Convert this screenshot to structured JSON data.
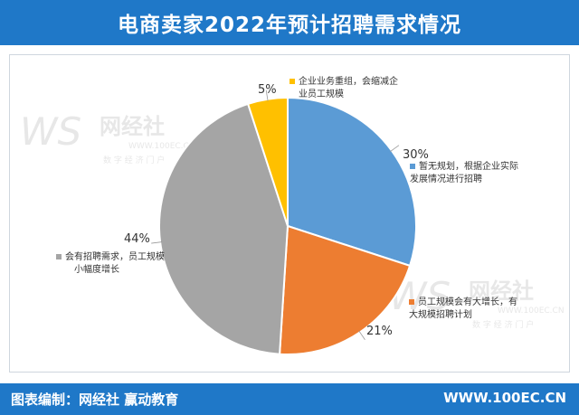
{
  "title": "电商卖家2022年预计招聘需求情况",
  "footer": {
    "left": "图表编制：网经社  赢动教育",
    "right": "WWW.100EC.CN"
  },
  "watermark": {
    "logo": "WS",
    "brand": "网经社",
    "url": "WWW.100EC.CN",
    "tagline": "数 字 经 济 门 户"
  },
  "colors": {
    "header": "#1f78c8",
    "slices": [
      "#5b9bd5",
      "#ed7d31",
      "#a5a5a5",
      "#ffc000"
    ]
  },
  "chart_data": {
    "type": "pie",
    "title": "电商卖家2022年预计招聘需求情况",
    "slices": [
      {
        "pct_label": "30%",
        "value": 30,
        "label_lines": [
          "暂无规划，根据企业实际",
          "发展情况进行招聘"
        ]
      },
      {
        "pct_label": "21%",
        "value": 21,
        "label_lines": [
          "员工规模会有大增长，有",
          "大规模招聘计划"
        ]
      },
      {
        "pct_label": "44%",
        "value": 44,
        "label_lines": [
          "会有招聘需求，员工规模",
          "小幅度增长"
        ]
      },
      {
        "pct_label": "5%",
        "value": 5,
        "label_lines": [
          "企业业务重组，会缩减企",
          "业员工规模"
        ]
      }
    ]
  }
}
